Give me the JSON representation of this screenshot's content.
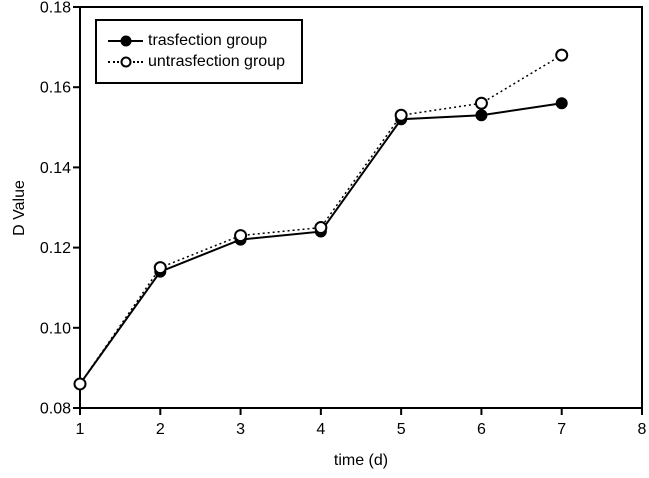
{
  "figure": {
    "background": "#ffffff",
    "axis_color": "#000000",
    "series_color": "#000000"
  },
  "chart_data": {
    "type": "line",
    "title": "",
    "xlabel": "time (d)",
    "ylabel": "D Value",
    "x": [
      1,
      2,
      3,
      4,
      5,
      6,
      7
    ],
    "series": [
      {
        "name": "trasfection group",
        "marker": "filled-circle",
        "line_style": "solid",
        "color": "#000000",
        "values": [
          0.086,
          0.114,
          0.122,
          0.124,
          0.152,
          0.153,
          0.156
        ]
      },
      {
        "name": "untrasfection group",
        "marker": "open-circle",
        "line_style": "dotted",
        "color": "#000000",
        "values": [
          0.086,
          0.115,
          0.123,
          0.125,
          0.153,
          0.156,
          0.168
        ]
      }
    ],
    "xlim": [
      1,
      8
    ],
    "ylim": [
      0.08,
      0.18
    ],
    "x_ticks": [
      1,
      2,
      3,
      4,
      5,
      6,
      7,
      8
    ],
    "y_ticks": [
      0.08,
      0.1,
      0.12,
      0.14,
      0.16,
      0.18
    ],
    "y_tick_decimals": 2,
    "grid": false,
    "frame": "box",
    "legend_position": "top-left"
  }
}
